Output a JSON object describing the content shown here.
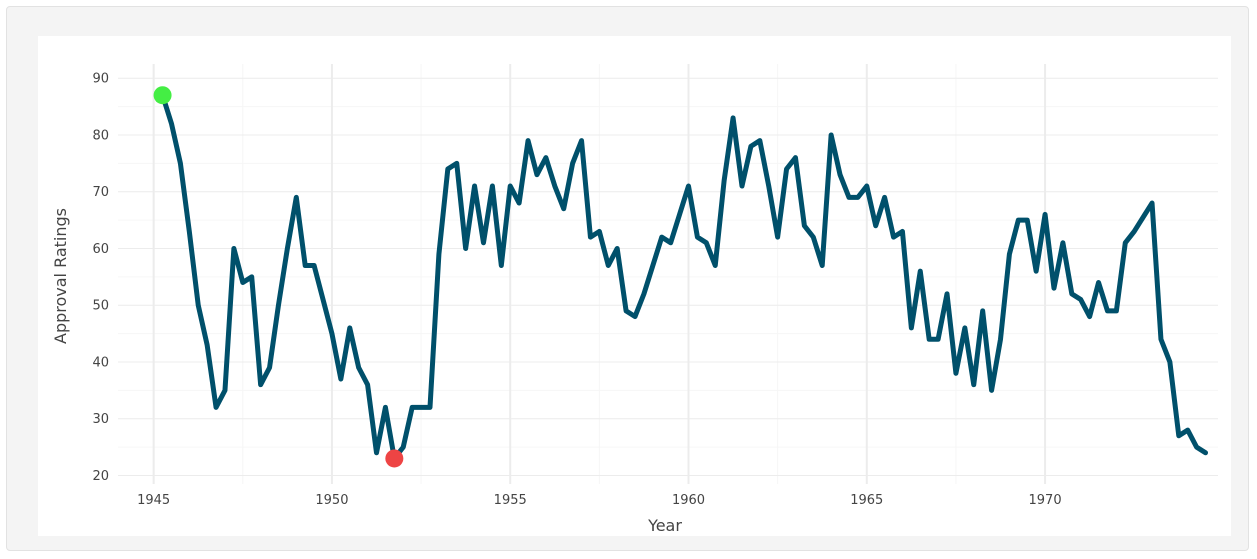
{
  "chart_data": {
    "type": "line",
    "xlabel": "Year",
    "ylabel": "Approval Ratings",
    "xlim": [
      1944.0,
      1974.85
    ],
    "ylim": [
      18.5,
      92.5
    ],
    "x_ticks": [
      "1945",
      "1950",
      "1955",
      "1960",
      "1965",
      "1970"
    ],
    "y_ticks": [
      "20",
      "30",
      "40",
      "50",
      "60",
      "70",
      "80",
      "90"
    ],
    "grid": true,
    "series": [
      {
        "color": "#00506b",
        "x": [
          1945.25,
          1945.5,
          1945.75,
          1946.0,
          1946.25,
          1946.5,
          1946.75,
          1947.0,
          1947.25,
          1947.5,
          1947.75,
          1948.0,
          1948.25,
          1948.5,
          1948.75,
          1949.0,
          1949.25,
          1949.5,
          1949.75,
          1950.0,
          1950.25,
          1950.5,
          1950.75,
          1951.0,
          1951.25,
          1951.5,
          1951.75,
          1952.0,
          1952.25,
          1952.5,
          1952.75,
          1953.0,
          1953.25,
          1953.5,
          1953.75,
          1954.0,
          1954.25,
          1954.5,
          1954.75,
          1955.0,
          1955.25,
          1955.5,
          1955.75,
          1956.0,
          1956.25,
          1956.5,
          1956.75,
          1957.0,
          1957.25,
          1957.5,
          1957.75,
          1958.0,
          1958.25,
          1958.5,
          1958.75,
          1959.0,
          1959.25,
          1959.5,
          1959.75,
          1960.0,
          1960.25,
          1960.5,
          1960.75,
          1961.0,
          1961.25,
          1961.5,
          1961.75,
          1962.0,
          1962.25,
          1962.5,
          1962.75,
          1963.0,
          1963.25,
          1963.5,
          1963.75,
          1964.0,
          1964.25,
          1964.5,
          1964.75,
          1965.0,
          1965.25,
          1965.5,
          1965.75,
          1966.0,
          1966.25,
          1966.5,
          1966.75,
          1967.0,
          1967.25,
          1967.5,
          1967.75,
          1968.0,
          1968.25,
          1968.5,
          1968.75,
          1969.0,
          1969.25,
          1969.5,
          1969.75,
          1970.0,
          1970.25,
          1970.5,
          1970.75,
          1971.0,
          1971.25,
          1971.5,
          1971.75,
          1972.0,
          1972.25,
          1972.5,
          1973.0,
          1973.25,
          1973.5,
          1973.75,
          1974.0,
          1974.25,
          1974.5
        ],
        "values": [
          87,
          82,
          75,
          63,
          50,
          43,
          32,
          35,
          60,
          54,
          55,
          36,
          39,
          50,
          60,
          69,
          57,
          57,
          51,
          45,
          37,
          46,
          39,
          36,
          24,
          32,
          23,
          25,
          32,
          32,
          32,
          59,
          74,
          75,
          60,
          71,
          61,
          71,
          57,
          71,
          68,
          79,
          73,
          76,
          71,
          67,
          75,
          79,
          62,
          63,
          57,
          60,
          49,
          48,
          52,
          57,
          62,
          61,
          66,
          71,
          62,
          61,
          57,
          72,
          83,
          71,
          78,
          79,
          71,
          62,
          74,
          76,
          64,
          62,
          57,
          80,
          73,
          69,
          69,
          71,
          64,
          69,
          62,
          63,
          46,
          56,
          44,
          44,
          52,
          38,
          46,
          36,
          49,
          35,
          44,
          59,
          65,
          65,
          56,
          66,
          53,
          61,
          52,
          51,
          48,
          54,
          49,
          49,
          61,
          63,
          68,
          44,
          40,
          27,
          28,
          25,
          24
        ]
      }
    ],
    "markers": [
      {
        "x": 1945.25,
        "y": 87,
        "color": "#44ee44"
      },
      {
        "x": 1951.75,
        "y": 23,
        "color": "#ee4444"
      }
    ]
  }
}
